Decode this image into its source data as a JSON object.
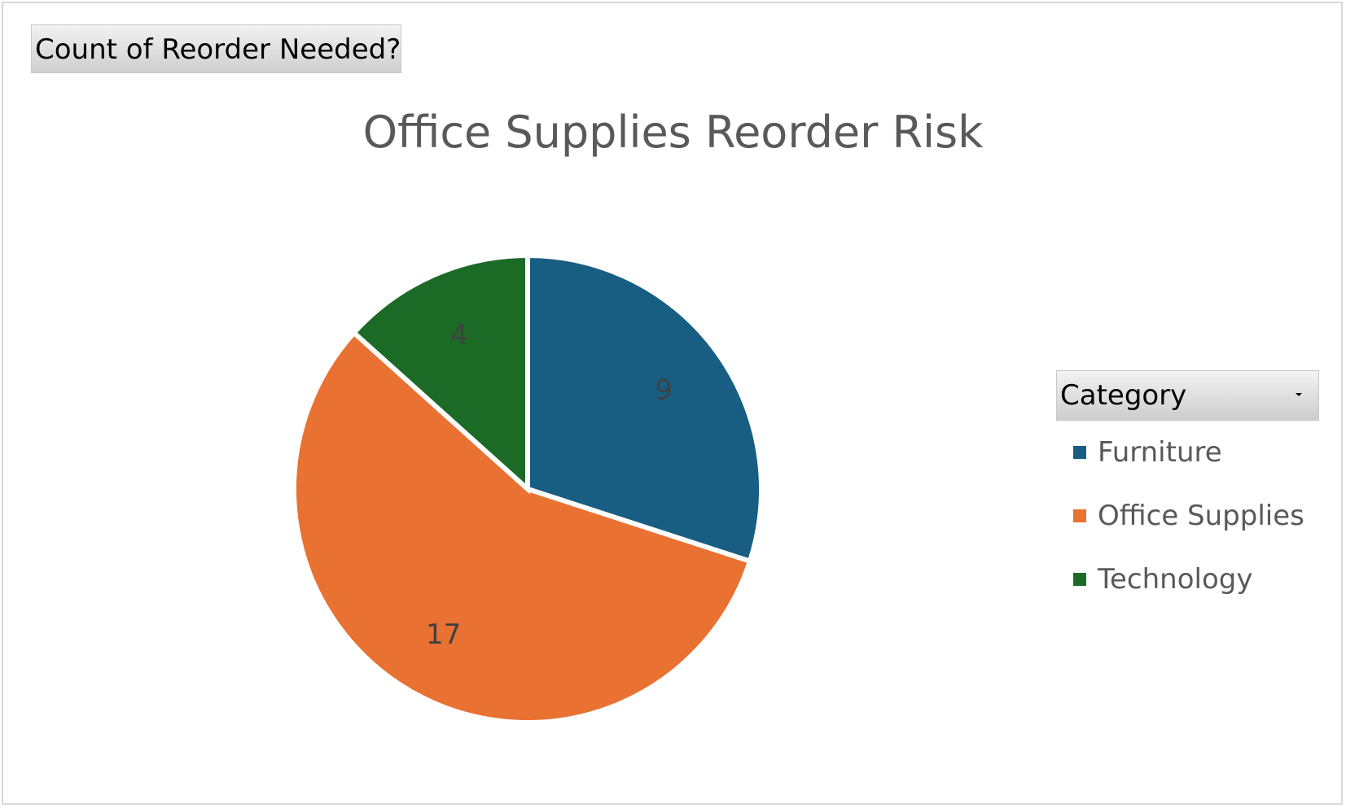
{
  "field_button": {
    "label": "Count of Reorder Needed?"
  },
  "legend": {
    "filter_label": "Category",
    "filter_icon": "dropdown-arrow-icon"
  },
  "colors": {
    "furniture": "#175E82",
    "office_supplies": "#E97132",
    "technology": "#1B6B27",
    "title_text": "#595959",
    "data_label_text": "#404040"
  },
  "chart_data": {
    "type": "pie",
    "title": "Office Supplies Reorder Risk",
    "categories": [
      "Furniture",
      "Office Supplies",
      "Technology"
    ],
    "values": [
      9,
      17,
      4
    ],
    "data_labels": [
      "9",
      "17",
      "4"
    ],
    "colors": [
      "#175E82",
      "#E97132",
      "#1B6B27"
    ],
    "start_angle_deg": 0,
    "direction": "clockwise",
    "legend_position": "right"
  }
}
